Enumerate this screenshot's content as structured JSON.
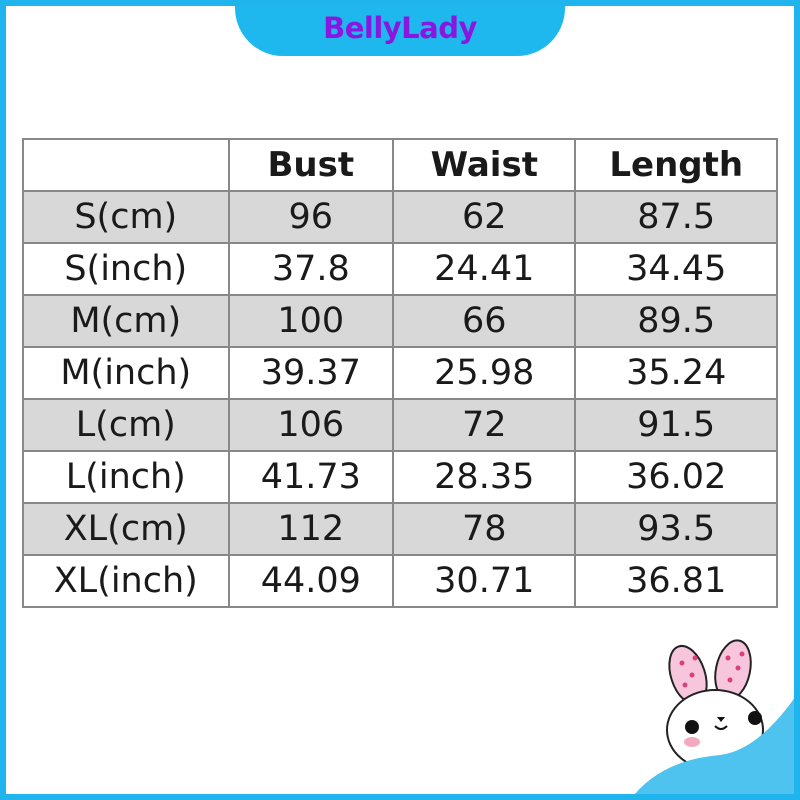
{
  "brand": {
    "name": "BellyLady",
    "color": "#8a16e0",
    "accent": "#1fb8ee"
  },
  "table": {
    "headers": [
      "",
      "Bust",
      "Waist",
      "Length"
    ],
    "rows": [
      [
        "S(cm)",
        "96",
        "62",
        "87.5"
      ],
      [
        "S(inch)",
        "37.8",
        "24.41",
        "34.45"
      ],
      [
        "M(cm)",
        "100",
        "66",
        "89.5"
      ],
      [
        "M(inch)",
        "39.37",
        "25.98",
        "35.24"
      ],
      [
        "L(cm)",
        "106",
        "72",
        "91.5"
      ],
      [
        "L(inch)",
        "41.73",
        "28.35",
        "36.02"
      ],
      [
        "XL(cm)",
        "112",
        "78",
        "93.5"
      ],
      [
        "XL(inch)",
        "44.09",
        "30.71",
        "36.81"
      ]
    ]
  },
  "decoration": {
    "icon": "bunny-mascot-icon"
  }
}
